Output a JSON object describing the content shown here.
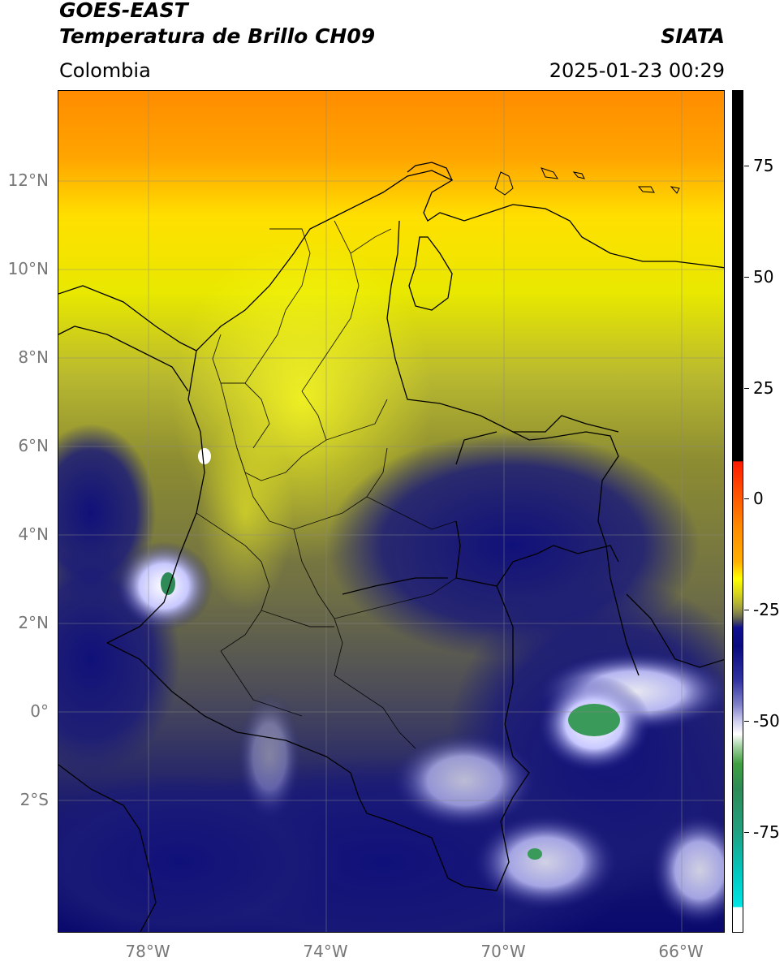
{
  "header": {
    "satellite": "GOES-EAST",
    "product": "Temperatura de Brillo CH09",
    "source": "SIATA",
    "region": "Colombia",
    "datetime": "2025-01-23 00:29"
  },
  "map": {
    "lat_labels": [
      "12°N",
      "10°N",
      "8°N",
      "6°N",
      "4°N",
      "2°N",
      "0°",
      "2°S"
    ],
    "lon_labels": [
      "78°W",
      "74°W",
      "70°W",
      "66°W"
    ],
    "extent": {
      "lon_min": -80,
      "lon_max": -65,
      "lat_min": -5,
      "lat_max": 14
    }
  },
  "colorbar": {
    "ticks": [
      "75",
      "50",
      "25",
      "0",
      "-25",
      "-50",
      "-75"
    ],
    "colors": {
      "warm": "#000000",
      "red": "#ff1a00",
      "orange": "#ff8c00",
      "yellow": "#ffff00",
      "olive": "#8c8c2a",
      "navy": "#0a0a7a",
      "white": "#ffffff",
      "green": "#2e8b57",
      "cyan": "#00e5e5"
    }
  }
}
